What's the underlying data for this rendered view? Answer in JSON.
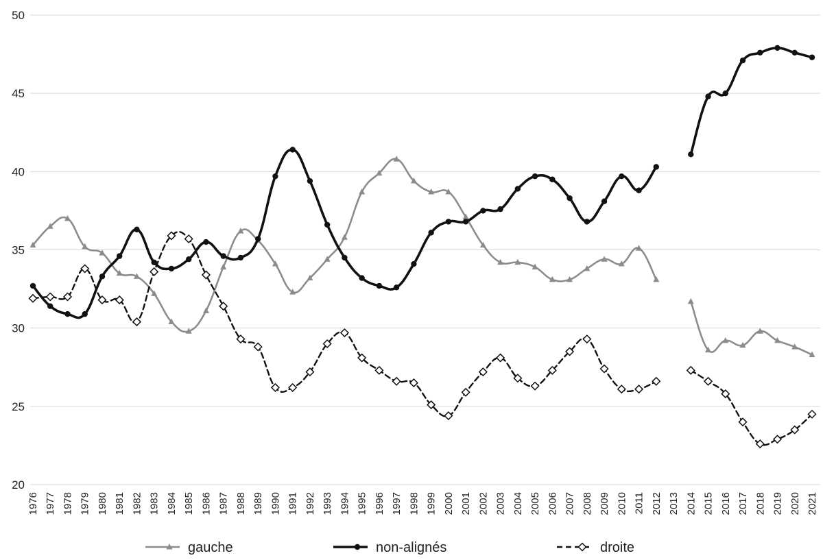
{
  "chart_data": {
    "type": "line",
    "title": "",
    "xlabel": "",
    "ylabel": "",
    "ylim": [
      20,
      50
    ],
    "yticks": [
      "20",
      "25",
      "30",
      "35",
      "40",
      "45",
      "50"
    ],
    "grid": "horizontal",
    "legend_position": "bottom",
    "x": [
      "1976",
      "1977",
      "1978",
      "1979",
      "1980",
      "1981",
      "1982",
      "1983",
      "1984",
      "1985",
      "1986",
      "1987",
      "1988",
      "1989",
      "1990",
      "1991",
      "1992",
      "1993",
      "1994",
      "1995",
      "1996",
      "1997",
      "1998",
      "1999",
      "2000",
      "2001",
      "2002",
      "2003",
      "2004",
      "2005",
      "2006",
      "2007",
      "2008",
      "2009",
      "2010",
      "2011",
      "2012",
      "2013",
      "2014",
      "2015",
      "2016",
      "2017",
      "2018",
      "2019",
      "2020",
      "2021"
    ],
    "series": [
      {
        "name": "gauche",
        "color": "#8c8c8c",
        "marker": "triangle",
        "dash": "solid",
        "values": [
          35.3,
          36.5,
          37.0,
          35.2,
          34.8,
          33.5,
          33.3,
          32.2,
          30.4,
          29.8,
          31.1,
          33.9,
          36.2,
          35.6,
          34.1,
          32.3,
          33.2,
          34.4,
          35.8,
          38.7,
          39.9,
          40.8,
          39.4,
          38.7,
          38.7,
          37.1,
          35.3,
          34.2,
          34.2,
          33.9,
          33.1,
          33.1,
          33.8,
          34.4,
          34.1,
          35.1,
          33.1,
          null,
          31.7,
          28.6,
          29.2,
          28.9,
          29.8,
          29.2,
          28.8,
          28.3
        ]
      },
      {
        "name": "non-alignés",
        "color": "#111111",
        "marker": "circle",
        "dash": "solid",
        "values": [
          32.7,
          31.4,
          30.9,
          30.9,
          33.3,
          34.6,
          36.3,
          34.2,
          33.8,
          34.4,
          35.5,
          34.6,
          34.5,
          35.7,
          39.7,
          41.4,
          39.4,
          36.6,
          34.5,
          33.2,
          32.7,
          32.6,
          34.1,
          36.1,
          36.8,
          36.8,
          37.5,
          37.6,
          38.9,
          39.7,
          39.5,
          38.3,
          36.8,
          38.1,
          39.7,
          38.8,
          40.3,
          null,
          41.1,
          44.8,
          45.0,
          47.1,
          47.6,
          47.9,
          47.6,
          47.3
        ]
      },
      {
        "name": "droite",
        "color": "#111111",
        "marker": "diamond",
        "dash": "dashed",
        "values": [
          31.9,
          32.0,
          32.0,
          33.8,
          31.8,
          31.8,
          30.4,
          33.6,
          35.9,
          35.7,
          33.4,
          31.4,
          29.3,
          28.8,
          26.2,
          26.2,
          27.2,
          29.0,
          29.7,
          28.1,
          27.3,
          26.6,
          26.5,
          25.1,
          24.4,
          25.9,
          27.2,
          28.1,
          26.8,
          26.3,
          27.3,
          28.5,
          29.3,
          27.4,
          26.1,
          26.1,
          26.6,
          null,
          27.3,
          26.6,
          25.8,
          24.0,
          22.6,
          22.9,
          23.5,
          24.5
        ]
      }
    ]
  }
}
